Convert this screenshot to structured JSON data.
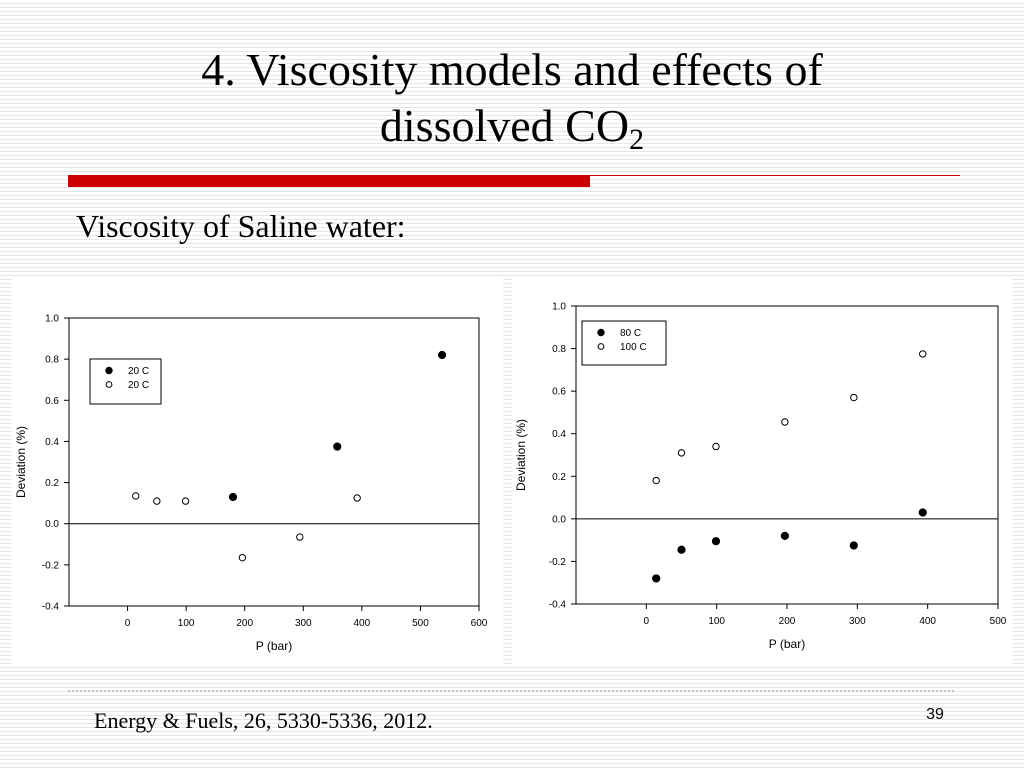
{
  "slide": {
    "title_line1": "4. Viscosity models and effects of",
    "title_line2_text": "dissolved CO",
    "title_line2_sub": "2",
    "subtitle": "Viscosity of Saline water:",
    "citation": "Energy & Fuels, 26, 5330-5336, 2012.",
    "page_number": "39",
    "accent_color": "#cc0000"
  },
  "chart_data": [
    {
      "type": "scatter",
      "xlabel": "P (bar)",
      "ylabel": "Deviation (%)",
      "xlim": [
        -100,
        600
      ],
      "ylim": [
        -0.4,
        1.0
      ],
      "x_ticks": [
        0,
        100,
        200,
        300,
        400,
        500,
        600
      ],
      "y_ticks": [
        -0.4,
        -0.2,
        0.0,
        0.2,
        0.4,
        0.6,
        0.8,
        1.0
      ],
      "x_tick_labels": [
        "0",
        "100",
        "200",
        "300",
        "400",
        "500",
        "600"
      ],
      "y_tick_labels": [
        "-0.4",
        "-0.2",
        "0.0",
        "0.2",
        "0.4",
        "0.6",
        "0.8",
        "1.0"
      ],
      "zero_line": true,
      "grid": false,
      "legend_position": "top-left",
      "series": [
        {
          "name": "20 C",
          "marker": "filled-circle",
          "x": [
            180,
            358,
            537
          ],
          "y": [
            0.13,
            0.375,
            0.82
          ]
        },
        {
          "name": "20 C",
          "marker": "open-circle",
          "x": [
            14,
            50,
            99,
            196,
            294,
            392
          ],
          "y": [
            0.135,
            0.11,
            0.11,
            -0.165,
            -0.065,
            0.125
          ]
        }
      ]
    },
    {
      "type": "scatter",
      "xlabel": "P (bar)",
      "ylabel": "Deviation (%)",
      "xlim": [
        -100,
        500
      ],
      "ylim": [
        -0.4,
        1.0
      ],
      "x_ticks": [
        0,
        100,
        200,
        300,
        400,
        500
      ],
      "y_ticks": [
        -0.4,
        -0.2,
        0.0,
        0.2,
        0.4,
        0.6,
        0.8,
        1.0
      ],
      "x_tick_labels": [
        "0",
        "100",
        "200",
        "300",
        "400",
        "500"
      ],
      "y_tick_labels": [
        "-0.4",
        "-0.2",
        "0.0",
        "0.2",
        "0.4",
        "0.6",
        "0.8",
        "1.0"
      ],
      "zero_line": true,
      "grid": false,
      "legend_position": "top-left",
      "series": [
        {
          "name": "80 C",
          "marker": "filled-circle",
          "x": [
            14,
            50,
            99,
            197,
            295,
            393
          ],
          "y": [
            -0.28,
            -0.145,
            -0.105,
            -0.08,
            -0.125,
            0.03
          ]
        },
        {
          "name": "100 C",
          "marker": "open-circle",
          "x": [
            14,
            50,
            99,
            197,
            295,
            393
          ],
          "y": [
            0.18,
            0.31,
            0.34,
            0.455,
            0.57,
            0.775
          ]
        }
      ]
    }
  ]
}
